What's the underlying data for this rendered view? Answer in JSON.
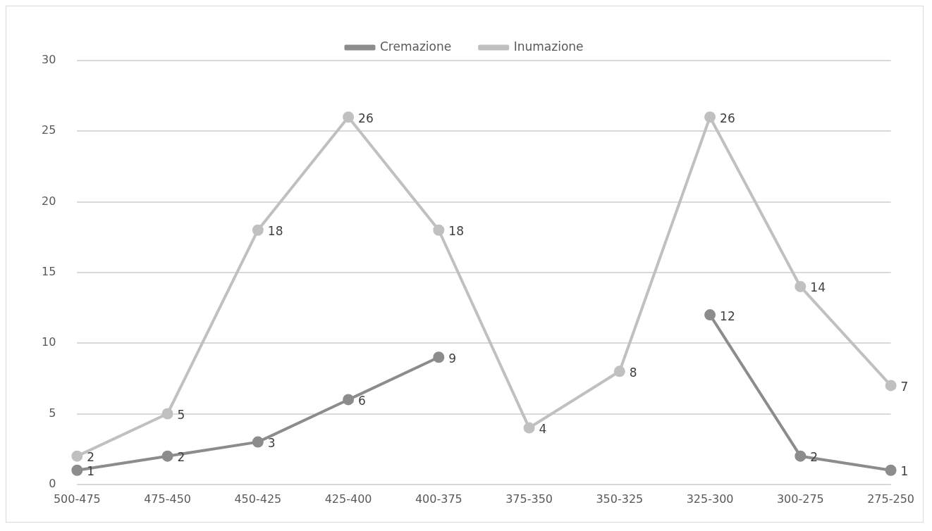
{
  "chart_data": {
    "type": "line",
    "categories": [
      "500-475",
      "475-450",
      "450-425",
      "425-400",
      "400-375",
      "375-350",
      "350-325",
      "325-300",
      "300-275",
      "275-250"
    ],
    "series": [
      {
        "name": "Cremazione",
        "color": "#8c8c8c",
        "values": [
          1,
          2,
          3,
          6,
          9,
          null,
          null,
          12,
          2,
          1
        ]
      },
      {
        "name": "Inumazione",
        "color": "#c0c0c0",
        "values": [
          2,
          5,
          18,
          26,
          18,
          4,
          8,
          26,
          14,
          7
        ]
      }
    ],
    "ylim": [
      0,
      30
    ],
    "yticks": [
      0,
      5,
      10,
      15,
      20,
      25,
      30
    ],
    "grid": "y",
    "legend": "top",
    "marker": "circle",
    "line_style": "solid",
    "data_labels": true
  }
}
